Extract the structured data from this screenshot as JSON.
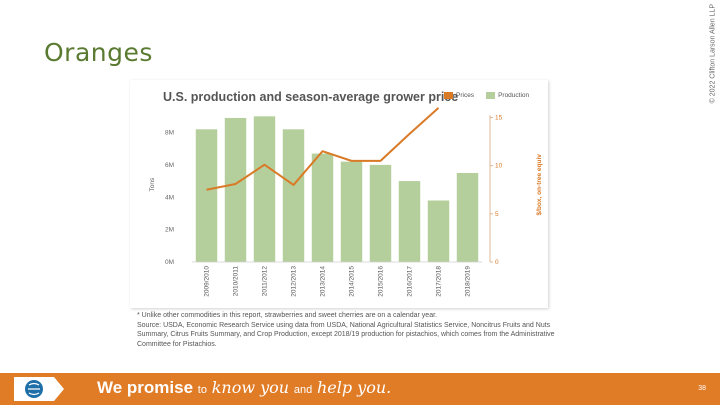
{
  "slide": {
    "title": "Oranges",
    "copyright": "© 2022 Clifton Larson Allen LLP",
    "page_number": "38"
  },
  "footer": {
    "promise_strong": "We promise",
    "promise_to": "to",
    "promise_know": "know you",
    "promise_and": "and",
    "promise_help": "help you."
  },
  "footnote": {
    "line1": "* Unlike other commodities in this report, strawberries and sweet cherries are on a calendar year.",
    "line2": "Source: USDA, Economic Research Service using data from USDA, National Agricultural Statistics Service, Noncitrus Fruits and Nuts Summary, Citrus Fruits Summary, and Crop Production, except 2018/19 production for pistachios, which comes from the Administrative Committee for Pistachios."
  },
  "colors": {
    "bars": "#b5cf9c",
    "line": "#d97a27",
    "footer": "#e07b26",
    "title": "#5a7a32"
  },
  "chart_data": {
    "type": "bar",
    "title": "U.S. production and season-average grower price",
    "legend": [
      "Prices",
      "Production"
    ],
    "legend_position": "top-right",
    "categories": [
      "2009/2010",
      "2010/2011",
      "2011/2012",
      "2012/2013",
      "2013/2014",
      "2014/2015",
      "2015/2016",
      "2016/2017",
      "2017/2018",
      "2018/2019"
    ],
    "series": [
      {
        "name": "Production",
        "axis": "left",
        "values": [
          8.2,
          8.9,
          9.0,
          8.2,
          6.7,
          6.2,
          6.0,
          5.0,
          3.8,
          5.5
        ]
      },
      {
        "name": "Prices",
        "axis": "right",
        "type": "line",
        "values": [
          7.5,
          8.1,
          10.1,
          8.0,
          11.5,
          10.5,
          10.5,
          13.3,
          16.0,
          null
        ]
      }
    ],
    "ylabel": "Tons",
    "ylabel_right": "$/box, on-tree equiv",
    "y_ticks_left": [
      "0M",
      "2M",
      "4M",
      "6M",
      "8M"
    ],
    "y_ticks_right": [
      "0",
      "5",
      "10",
      "15"
    ],
    "ylim_left": [
      0,
      9.7
    ],
    "ylim_right": [
      0,
      16.3
    ],
    "grid": false
  }
}
